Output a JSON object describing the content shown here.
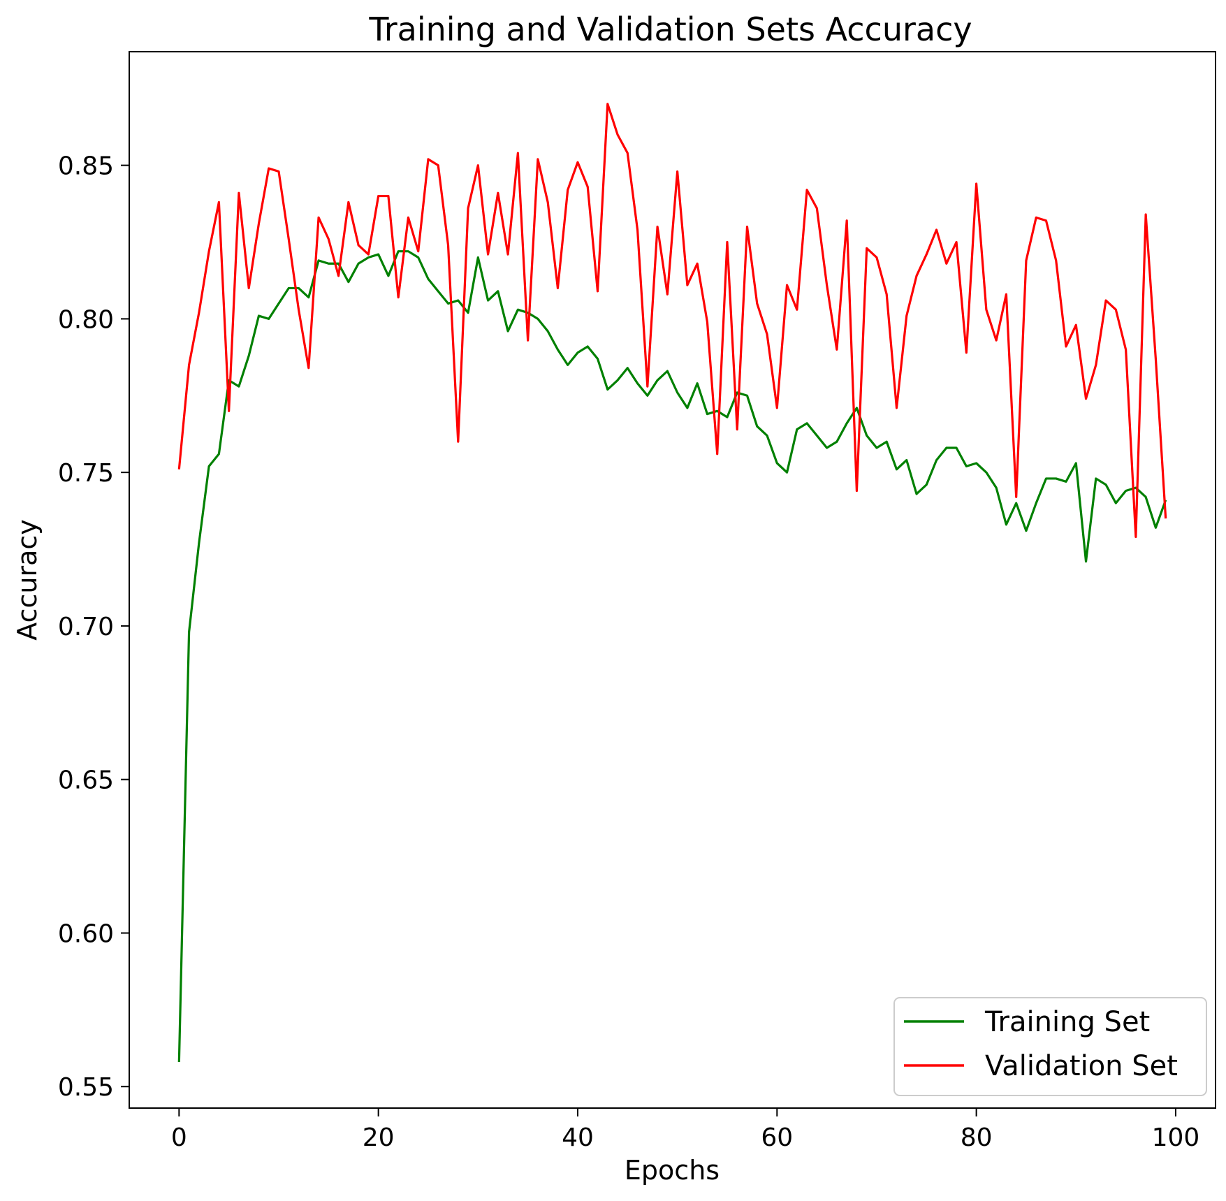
{
  "chart_data": {
    "type": "line",
    "title": "Training and Validation Sets Accuracy",
    "xlabel": "Epochs",
    "ylabel": "Accuracy",
    "xlim": [
      -5,
      104
    ],
    "ylim": [
      0.543,
      0.887
    ],
    "xticks": [
      0,
      20,
      40,
      60,
      80,
      100
    ],
    "xtick_labels": [
      "0",
      "20",
      "40",
      "60",
      "80",
      "100"
    ],
    "yticks": [
      0.55,
      0.6,
      0.65,
      0.7,
      0.75,
      0.8,
      0.85
    ],
    "ytick_labels": [
      "0.55",
      "0.60",
      "0.65",
      "0.70",
      "0.75",
      "0.80",
      "0.85"
    ],
    "grid": false,
    "legend_position": "lower-right",
    "series": [
      {
        "name": "Training Set",
        "color": "#008000",
        "values": [
          0.558,
          0.698,
          0.727,
          0.752,
          0.756,
          0.78,
          0.778,
          0.788,
          0.801,
          0.8,
          0.805,
          0.81,
          0.81,
          0.807,
          0.819,
          0.818,
          0.818,
          0.812,
          0.818,
          0.82,
          0.821,
          0.814,
          0.822,
          0.822,
          0.82,
          0.813,
          0.809,
          0.805,
          0.806,
          0.802,
          0.82,
          0.806,
          0.809,
          0.796,
          0.803,
          0.802,
          0.8,
          0.796,
          0.79,
          0.785,
          0.789,
          0.791,
          0.787,
          0.777,
          0.78,
          0.784,
          0.779,
          0.775,
          0.78,
          0.783,
          0.776,
          0.771,
          0.779,
          0.769,
          0.77,
          0.768,
          0.776,
          0.775,
          0.765,
          0.762,
          0.753,
          0.75,
          0.764,
          0.766,
          0.762,
          0.758,
          0.76,
          0.766,
          0.771,
          0.762,
          0.758,
          0.76,
          0.751,
          0.754,
          0.743,
          0.746,
          0.754,
          0.758,
          0.758,
          0.752,
          0.753,
          0.75,
          0.745,
          0.733,
          0.74,
          0.731,
          0.74,
          0.748,
          0.748,
          0.747,
          0.753,
          0.721,
          0.748,
          0.746,
          0.74,
          0.744,
          0.745,
          0.742,
          0.732,
          0.741
        ]
      },
      {
        "name": "Validation Set",
        "color": "#ff0000",
        "values": [
          0.751,
          0.785,
          0.802,
          0.822,
          0.838,
          0.77,
          0.841,
          0.81,
          0.831,
          0.849,
          0.848,
          0.826,
          0.803,
          0.784,
          0.833,
          0.826,
          0.814,
          0.838,
          0.824,
          0.821,
          0.84,
          0.84,
          0.807,
          0.833,
          0.822,
          0.852,
          0.85,
          0.824,
          0.76,
          0.836,
          0.85,
          0.821,
          0.841,
          0.821,
          0.854,
          0.793,
          0.852,
          0.838,
          0.81,
          0.842,
          0.851,
          0.843,
          0.809,
          0.87,
          0.86,
          0.854,
          0.829,
          0.778,
          0.83,
          0.808,
          0.848,
          0.811,
          0.818,
          0.799,
          0.756,
          0.825,
          0.764,
          0.83,
          0.805,
          0.795,
          0.771,
          0.811,
          0.803,
          0.842,
          0.836,
          0.811,
          0.79,
          0.832,
          0.744,
          0.823,
          0.82,
          0.808,
          0.771,
          0.801,
          0.814,
          0.821,
          0.829,
          0.818,
          0.825,
          0.789,
          0.844,
          0.803,
          0.793,
          0.808,
          0.742,
          0.819,
          0.833,
          0.832,
          0.819,
          0.791,
          0.798,
          0.774,
          0.785,
          0.806,
          0.803,
          0.79,
          0.729,
          0.834,
          0.787,
          0.735
        ]
      }
    ]
  }
}
